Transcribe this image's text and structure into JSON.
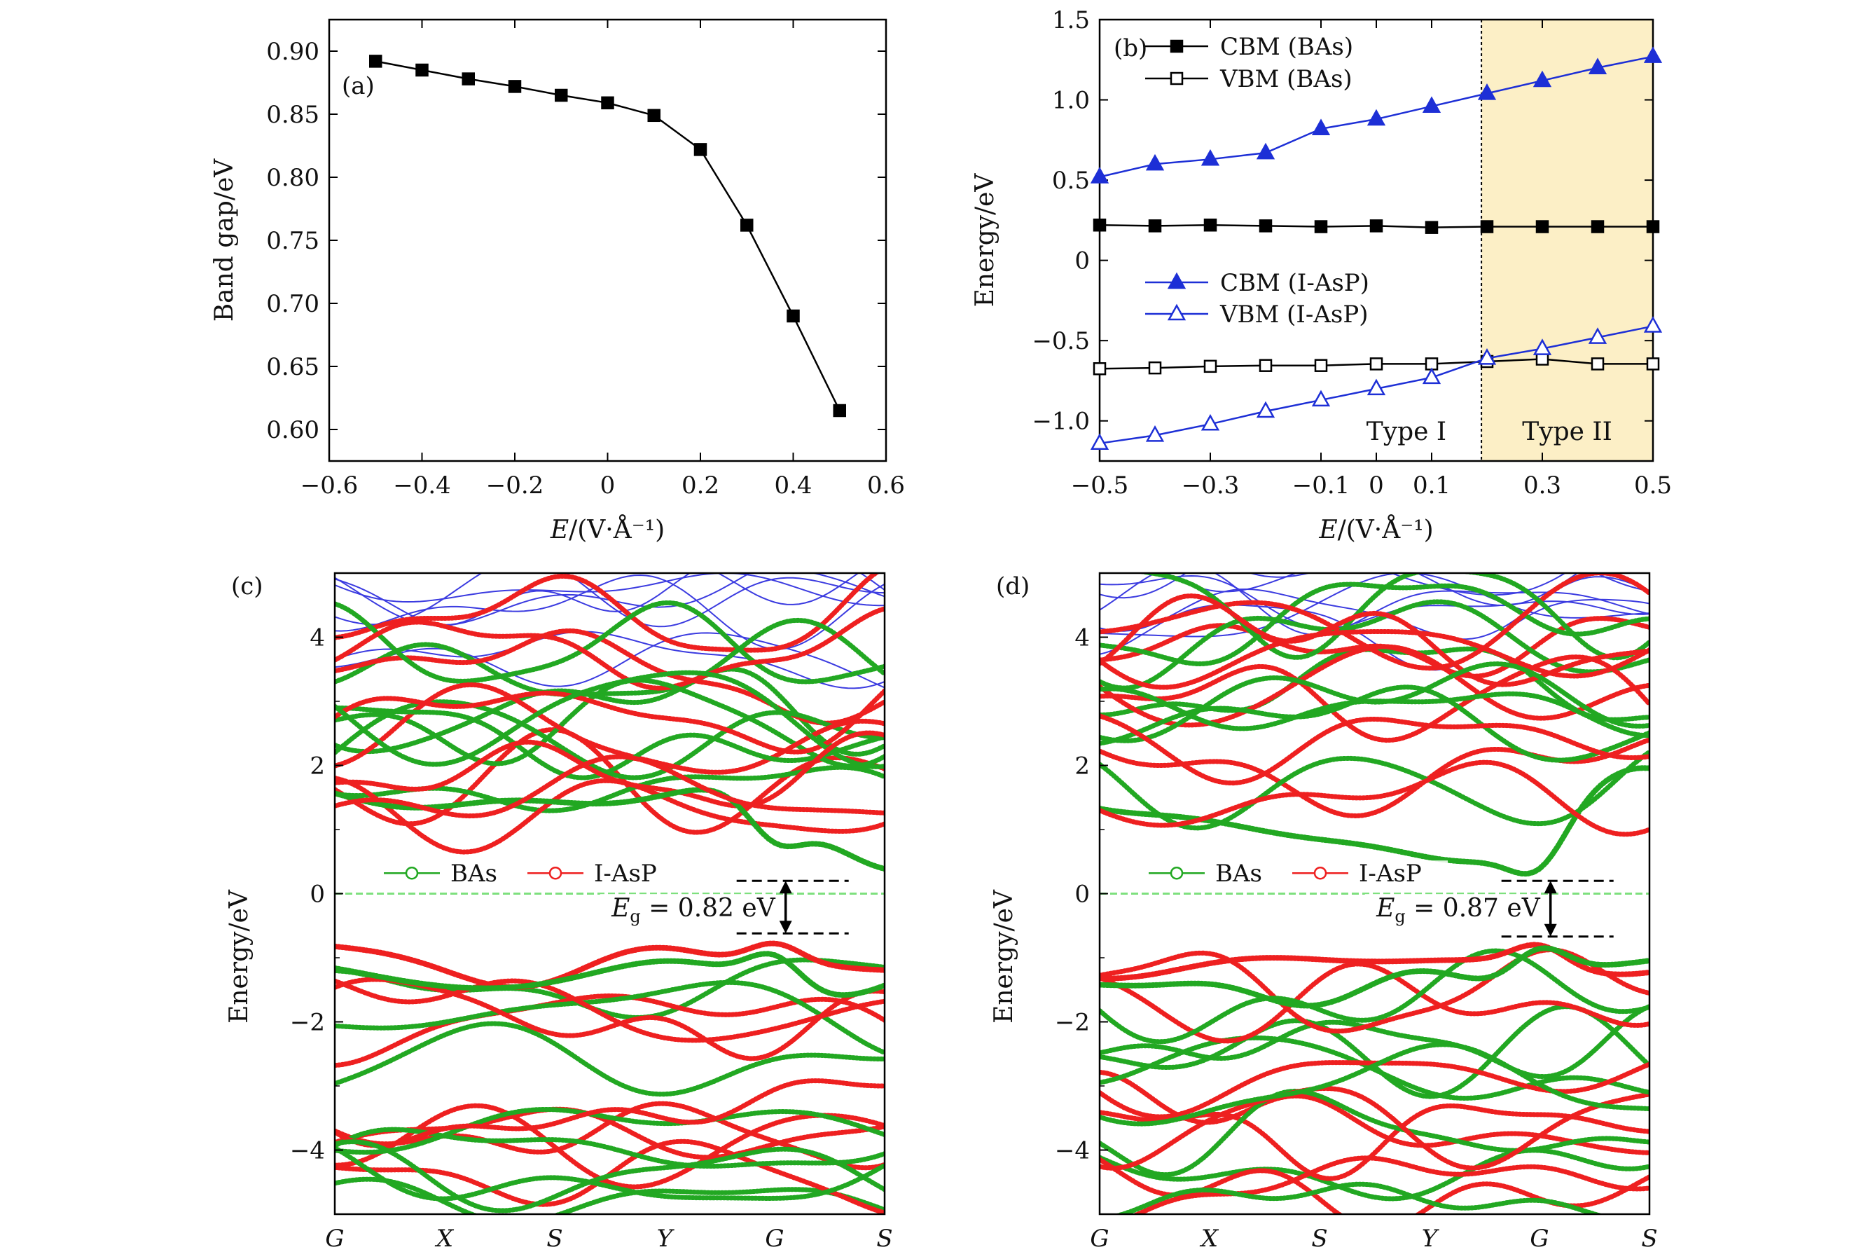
{
  "chart_data": [
    {
      "panel": "(a)",
      "type": "line",
      "xlabel_italic": "E",
      "xlabel_rest": "/(V·Å⁻¹)",
      "ylabel": "Band gap/eV",
      "xlim": [
        -0.6,
        0.6
      ],
      "ylim": [
        0.575,
        0.925
      ],
      "xticks": [
        -0.6,
        -0.4,
        -0.2,
        0,
        0.2,
        0.4,
        0.6
      ],
      "xtick_labels": [
        "−0.6",
        "−0.4",
        "−0.2",
        "0",
        "0.2",
        "0.4",
        "0.6"
      ],
      "yticks": [
        0.6,
        0.65,
        0.7,
        0.75,
        0.8,
        0.85,
        0.9
      ],
      "ytick_labels": [
        "0.60",
        "0.65",
        "0.70",
        "0.75",
        "0.80",
        "0.85",
        "0.90"
      ],
      "series": [
        {
          "x": [
            -0.5,
            -0.4,
            -0.3,
            -0.2,
            -0.1,
            0,
            0.1,
            0.2,
            0.3,
            0.4,
            0.5
          ],
          "y": [
            0.892,
            0.885,
            0.878,
            0.872,
            0.865,
            0.859,
            0.849,
            0.822,
            0.762,
            0.69,
            0.615
          ],
          "color": "#000000",
          "marker": "square-filled"
        }
      ]
    },
    {
      "panel": "(b)",
      "type": "line",
      "xlabel_italic": "E",
      "xlabel_rest": "/(V·Å⁻¹)",
      "ylabel": "Energy/eV",
      "xlim": [
        -0.5,
        0.5
      ],
      "ylim": [
        -1.25,
        1.5
      ],
      "xticks": [
        -0.5,
        -0.3,
        -0.1,
        0,
        0.1,
        0.3,
        0.5
      ],
      "xtick_labels": [
        "−0.5",
        "−0.3",
        "−0.1",
        "0",
        "0.1",
        "0.3",
        "0.5"
      ],
      "yticks": [
        -1.0,
        -0.5,
        0,
        0.5,
        1.0,
        1.5
      ],
      "ytick_labels": [
        "−1.0",
        "−0.5",
        "0",
        "0.5",
        "1.0",
        "1.5"
      ],
      "divider_x": 0.19,
      "region_left_label": "Type I",
      "region_right_label": "Type II",
      "region_right_color": "#fcefc6",
      "series": [
        {
          "name": "CBM (BAs)",
          "x": [
            -0.5,
            -0.4,
            -0.3,
            -0.2,
            -0.1,
            0,
            0.1,
            0.2,
            0.3,
            0.4,
            0.5
          ],
          "y": [
            0.22,
            0.215,
            0.22,
            0.215,
            0.21,
            0.215,
            0.205,
            0.21,
            0.21,
            0.21,
            0.21
          ],
          "color": "#000000",
          "marker": "square-filled"
        },
        {
          "name": "VBM (BAs)",
          "x": [
            -0.5,
            -0.4,
            -0.3,
            -0.2,
            -0.1,
            0,
            0.1,
            0.2,
            0.3,
            0.4,
            0.5
          ],
          "y": [
            -0.675,
            -0.67,
            -0.66,
            -0.655,
            -0.655,
            -0.645,
            -0.645,
            -0.63,
            -0.615,
            -0.645,
            -0.645
          ],
          "color": "#000000",
          "marker": "square-open"
        },
        {
          "name": "CBM (I-AsP)",
          "x": [
            -0.5,
            -0.4,
            -0.3,
            -0.2,
            -0.1,
            0,
            0.1,
            0.2,
            0.3,
            0.4,
            0.5
          ],
          "y": [
            0.52,
            0.6,
            0.63,
            0.67,
            0.82,
            0.88,
            0.96,
            1.04,
            1.12,
            1.2,
            1.27
          ],
          "color": "#1d2fd6",
          "marker": "triangle-filled"
        },
        {
          "name": "VBM (I-AsP)",
          "x": [
            -0.5,
            -0.4,
            -0.3,
            -0.2,
            -0.1,
            0,
            0.1,
            0.2,
            0.3,
            0.4,
            0.5
          ],
          "y": [
            -1.14,
            -1.09,
            -1.02,
            -0.94,
            -0.87,
            -0.8,
            -0.73,
            -0.61,
            -0.55,
            -0.48,
            -0.41
          ],
          "color": "#1d2fd6",
          "marker": "triangle-open"
        }
      ]
    },
    {
      "panel": "(c)",
      "type": "line",
      "subtype": "band-structure",
      "ylabel": "Energy/eV",
      "ylim": [
        -5,
        5
      ],
      "yticks": [
        -4,
        -2,
        0,
        2,
        4
      ],
      "ytick_labels": [
        "−4",
        "−2",
        "0",
        "2",
        "4"
      ],
      "kpoint_labels": [
        "G",
        "X",
        "S",
        "Y",
        "G",
        "S"
      ],
      "legend": [
        "BAs",
        "I-AsP"
      ],
      "legend_colors": [
        "#22a822",
        "#ee2020"
      ],
      "gap_label_var": "E",
      "gap_label_sub": "g",
      "gap_label_value": " = 0.82 eV",
      "gap_eV": 0.82,
      "cbm_eV": 0.2,
      "vbm_eV": -0.62
    },
    {
      "panel": "(d)",
      "type": "line",
      "subtype": "band-structure",
      "ylabel": "Energy/eV",
      "ylim": [
        -5,
        5
      ],
      "yticks": [
        -4,
        -2,
        0,
        2,
        4
      ],
      "ytick_labels": [
        "−4",
        "−2",
        "0",
        "2",
        "4"
      ],
      "kpoint_labels": [
        "G",
        "X",
        "S",
        "Y",
        "G",
        "S"
      ],
      "legend": [
        "BAs",
        "I-AsP"
      ],
      "legend_colors": [
        "#22a822",
        "#ee2020"
      ],
      "gap_label_var": "E",
      "gap_label_sub": "g",
      "gap_label_value": " = 0.87 eV",
      "gap_eV": 0.87,
      "cbm_eV": 0.2,
      "vbm_eV": -0.67
    }
  ]
}
